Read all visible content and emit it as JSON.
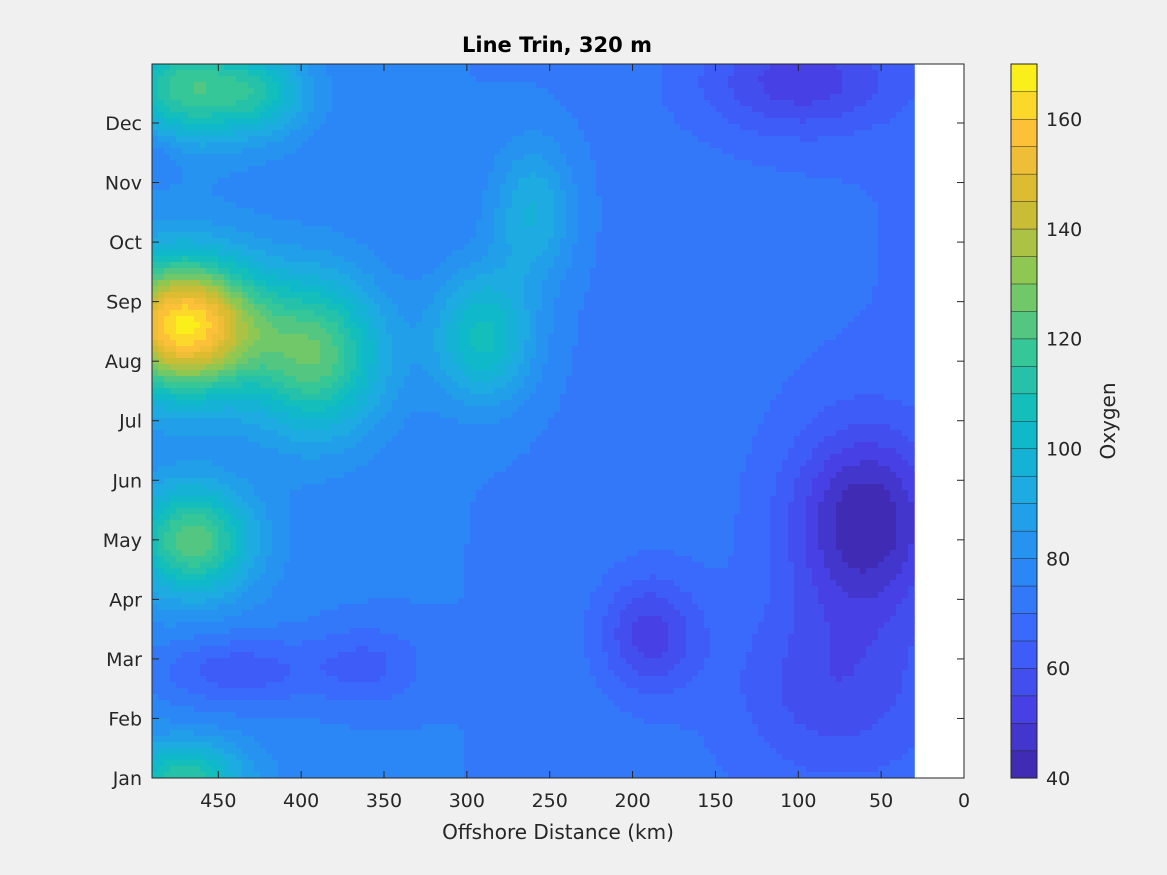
{
  "chart_data": {
    "type": "heatmap",
    "subtype": "filled-contour",
    "title": "Line Trin, 320 m",
    "xlabel": "Offshore Distance (km)",
    "ylabel": "",
    "x_reversed": true,
    "xlim": [
      490,
      0
    ],
    "xticks": [
      450,
      400,
      350,
      300,
      250,
      200,
      150,
      100,
      50,
      0
    ],
    "yticks": [
      "Jan",
      "Feb",
      "Mar",
      "Apr",
      "May",
      "Jun",
      "Jul",
      "Aug",
      "Sep",
      "Oct",
      "Nov",
      "Dec"
    ],
    "data_x_extent": [
      490,
      30
    ],
    "colorbar": {
      "label": "Oxygen",
      "clim": [
        40,
        170
      ],
      "ticks": [
        40,
        60,
        80,
        100,
        120,
        140,
        160
      ],
      "levels": 26,
      "colormap": "parula"
    },
    "grid": false,
    "features": [
      {
        "x": 470,
        "month": 7.6,
        "value": 162,
        "spread_x": 45,
        "spread_m": 1.1
      },
      {
        "x": 470,
        "month": 11.6,
        "value": 112,
        "spread_x": 35,
        "spread_m": 0.9
      },
      {
        "x": 425,
        "month": 11.5,
        "value": 102,
        "spread_x": 30,
        "spread_m": 0.7
      },
      {
        "x": 390,
        "month": 7.1,
        "value": 120,
        "spread_x": 40,
        "spread_m": 1.3
      },
      {
        "x": 465,
        "month": 4.0,
        "value": 120,
        "spread_x": 35,
        "spread_m": 0.9
      },
      {
        "x": 290,
        "month": 7.4,
        "value": 106,
        "spread_x": 30,
        "spread_m": 1.1
      },
      {
        "x": 470,
        "month": 0.0,
        "value": 110,
        "spread_x": 35,
        "spread_m": 0.6
      },
      {
        "x": 440,
        "month": 1.8,
        "value": 58,
        "spread_x": 50,
        "spread_m": 0.6
      },
      {
        "x": 360,
        "month": 1.9,
        "value": 62,
        "spread_x": 35,
        "spread_m": 0.7
      },
      {
        "x": 190,
        "month": 2.4,
        "value": 54,
        "spread_x": 30,
        "spread_m": 1.0
      },
      {
        "x": 100,
        "month": 11.7,
        "value": 55,
        "spread_x": 60,
        "spread_m": 0.9
      },
      {
        "x": 60,
        "month": 4.3,
        "value": 44,
        "spread_x": 45,
        "spread_m": 1.6
      },
      {
        "x": 80,
        "month": 1.5,
        "value": 60,
        "spread_x": 60,
        "spread_m": 1.5
      },
      {
        "x": 490,
        "month": 10.5,
        "value": 66,
        "spread_x": 20,
        "spread_m": 0.4
      },
      {
        "x": 260,
        "month": 9.5,
        "value": 95,
        "spread_x": 25,
        "spread_m": 1.2
      }
    ],
    "background_value": 74
  }
}
